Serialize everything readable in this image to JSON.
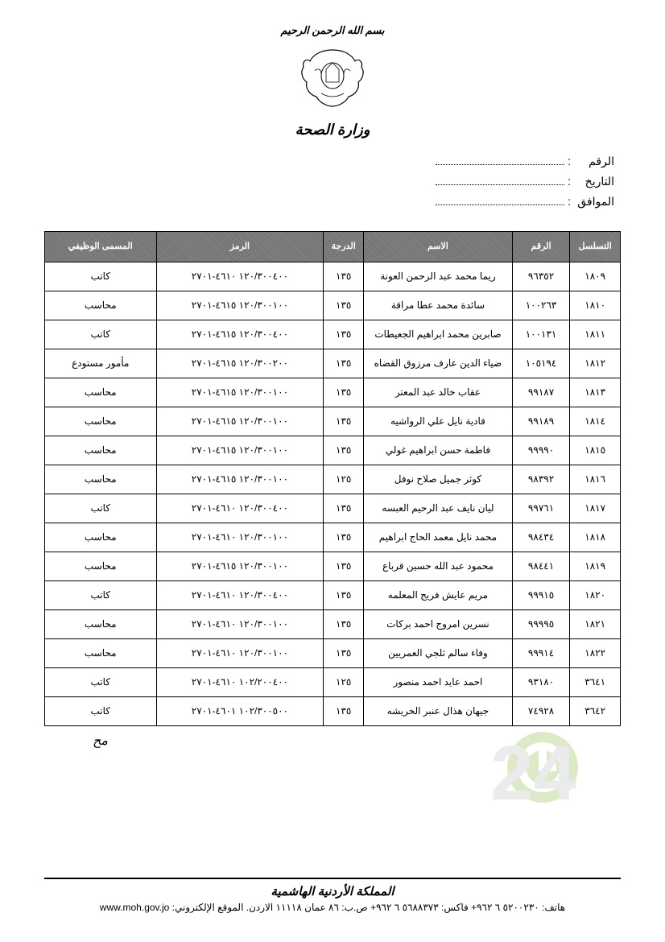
{
  "header": {
    "top_text": "بسم الله الرحمن الرحيم",
    "ministry": "وزارة الصحة"
  },
  "meta": {
    "number_label": "الرقم",
    "date_label": "التاريخ",
    "corresponds_label": "الموافق"
  },
  "table": {
    "columns": [
      "التسلسل",
      "الرقم",
      "الاسم",
      "الدرجة",
      "الرمز",
      "المسمى الوظيفي"
    ],
    "col_widths": [
      "col-seq",
      "col-emp",
      "col-name",
      "col-deg",
      "col-code",
      "col-title"
    ],
    "rows": [
      [
        "١٨٠٩",
        "٩٦٣٥٢",
        "ريما محمد عبد الرحمن العونة",
        "١٣٥",
        "١٢٠/٣٠٠٤٠٠ ٤٦١٠-٢٧٠١",
        "كاتب"
      ],
      [
        "١٨١٠",
        "١٠٠٢٦٣",
        "سائدة محمد عطا مراقة",
        "١٣٥",
        "١٢٠/٣٠٠١٠٠ ٤٦١٥-٢٧٠١",
        "محاسب"
      ],
      [
        "١٨١١",
        "١٠٠١٣١",
        "صابرين محمد ابراهيم الجعيطات",
        "١٣٥",
        "١٢٠/٣٠٠٤٠٠ ٤٦١٥-٢٧٠١",
        "كاتب"
      ],
      [
        "١٨١٢",
        "١٠٥١٩٤",
        "ضياء الدين عارف مرزوق القضاه",
        "١٣٥",
        "١٢٠/٣٠٠٢٠٠ ٤٦١٥-٢٧٠١",
        "مأمور مستودع"
      ],
      [
        "١٨١٣",
        "٩٩١٨٧",
        "عقاب خالد عبد المعتر",
        "١٣٥",
        "١٢٠/٣٠٠١٠٠ ٤٦١٥-٢٧٠١",
        "محاسب"
      ],
      [
        "١٨١٤",
        "٩٩١٨٩",
        "فادية نايل علي الرواشيه",
        "١٣٥",
        "١٢٠/٣٠٠١٠٠ ٤٦١٥-٢٧٠١",
        "محاسب"
      ],
      [
        "١٨١٥",
        "٩٩٩٩٠",
        "فاطمة حسن ابراهيم غولي",
        "١٣٥",
        "١٢٠/٣٠٠١٠٠ ٤٦١٥-٢٧٠١",
        "محاسب"
      ],
      [
        "١٨١٦",
        "٩٨٣٩٢",
        "كوثر جميل صلاح نوفل",
        "١٢٥",
        "١٢٠/٣٠٠١٠٠ ٤٦١٥-٢٧٠١",
        "محاسب"
      ],
      [
        "١٨١٧",
        "٩٩٧٦١",
        "ليان نايف عبد الرحيم العبسه",
        "١٣٥",
        "١٢٠/٣٠٠٤٠٠ ٤٦١٠-٢٧٠١",
        "كاتب"
      ],
      [
        "١٨١٨",
        "٩٨٤٣٤",
        "محمد نايل معمد الحاج ابراهيم",
        "١٣٥",
        "١٢٠/٣٠٠١٠٠ ٤٦١٠-٢٧٠١",
        "محاسب"
      ],
      [
        "١٨١٩",
        "٩٨٤٤١",
        "محمود عبد الله حسين قرباع",
        "١٣٥",
        "١٢٠/٣٠٠١٠٠ ٤٦١٥-٢٧٠١",
        "محاسب"
      ],
      [
        "١٨٢٠",
        "٩٩٩١٥",
        "مريم عايش فريج المعلمه",
        "١٣٥",
        "١٢٠/٣٠٠٤٠٠ ٤٦١٠-٢٧٠١",
        "كاتب"
      ],
      [
        "١٨٢١",
        "٩٩٩٩٥",
        "نسرين امروج احمد بركات",
        "١٣٥",
        "١٢٠/٣٠٠١٠٠ ٤٦١٠-٢٧٠١",
        "محاسب"
      ],
      [
        "١٨٢٢",
        "٩٩٩١٤",
        "وفاء سالم ثلجي العمريين",
        "١٣٥",
        "١٢٠/٣٠٠١٠٠ ٤٦١٠-٢٧٠١",
        "محاسب"
      ],
      [
        "٣٦٤١",
        "٩٣١٨٠",
        "احمد عايد احمد منصور",
        "١٢٥",
        "١٠٢/٢٠٠٤٠٠ ٤٦١٠-٢٧٠١",
        "كاتب"
      ],
      [
        "٣٦٤٢",
        "٧٤٩٢٨",
        "جيهان هذال عنبر الخريشه",
        "١٣٥",
        "١٠٢/٣٠٠٥٠٠ ٤٦٠١-٢٧٠١",
        "كاتب"
      ]
    ]
  },
  "signature": "مح",
  "watermark": {
    "letter1": "J",
    "letter2": "2",
    "letter3": "4",
    "color_green": "#89b23d",
    "color_grey": "#b8b8b8"
  },
  "footer": {
    "kingdom": "المملكة الأردنية الهاشمية",
    "contact": "هاتف: ٥٢٠٠٢٣٠ ٦ ٩٦٢+ فاكس: ٥٦٨٨٣٧٣ ٦ ٩٦٢+ ص.ب: ٨٦ عمان ١١١١٨ الاردن. الموقع الإلكتروني: www.moh.gov.jo"
  },
  "styles": {
    "page_bg": "#ffffff",
    "text_color": "#000000",
    "border_color": "#000000",
    "header_bg_pattern": "noise-dark"
  }
}
